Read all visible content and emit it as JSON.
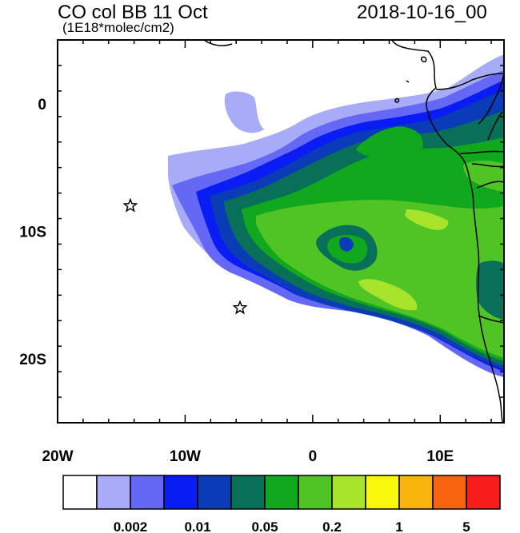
{
  "title": "CO col BB 11 Oct",
  "units": "(1E18*molec/cm2)",
  "datetime": "2018-10-16_00",
  "map": {
    "lon_range": [
      -20,
      15
    ],
    "lat_range": [
      -25,
      5
    ],
    "x_ticks": [
      {
        "value": -20,
        "label": "20W"
      },
      {
        "value": -10,
        "label": "10W"
      },
      {
        "value": 0,
        "label": "0"
      },
      {
        "value": 10,
        "label": "10E"
      }
    ],
    "y_ticks": [
      {
        "value": 0,
        "label": "0"
      },
      {
        "value": -10,
        "label": "10S"
      },
      {
        "value": -20,
        "label": "20S"
      }
    ],
    "markers": [
      {
        "type": "star",
        "lon": -14.3,
        "lat": -8.0
      },
      {
        "type": "star",
        "lon": -5.7,
        "lat": -16.0
      }
    ]
  },
  "colorbar": {
    "colors": [
      "#ffffff",
      "#a8acf8",
      "#6468f4",
      "#0a1cf4",
      "#0a3cb8",
      "#087058",
      "#10a81c",
      "#50c424",
      "#a8e42c",
      "#f8f80a",
      "#f8b40a",
      "#f86410",
      "#f81c1c"
    ],
    "labels": [
      {
        "after_box": 2,
        "text": "0.002"
      },
      {
        "after_box": 4,
        "text": "0.01"
      },
      {
        "after_box": 6,
        "text": "0.05"
      },
      {
        "after_box": 8,
        "text": "0.2"
      },
      {
        "after_box": 10,
        "text": "1"
      },
      {
        "after_box": 12,
        "text": "5"
      }
    ]
  }
}
